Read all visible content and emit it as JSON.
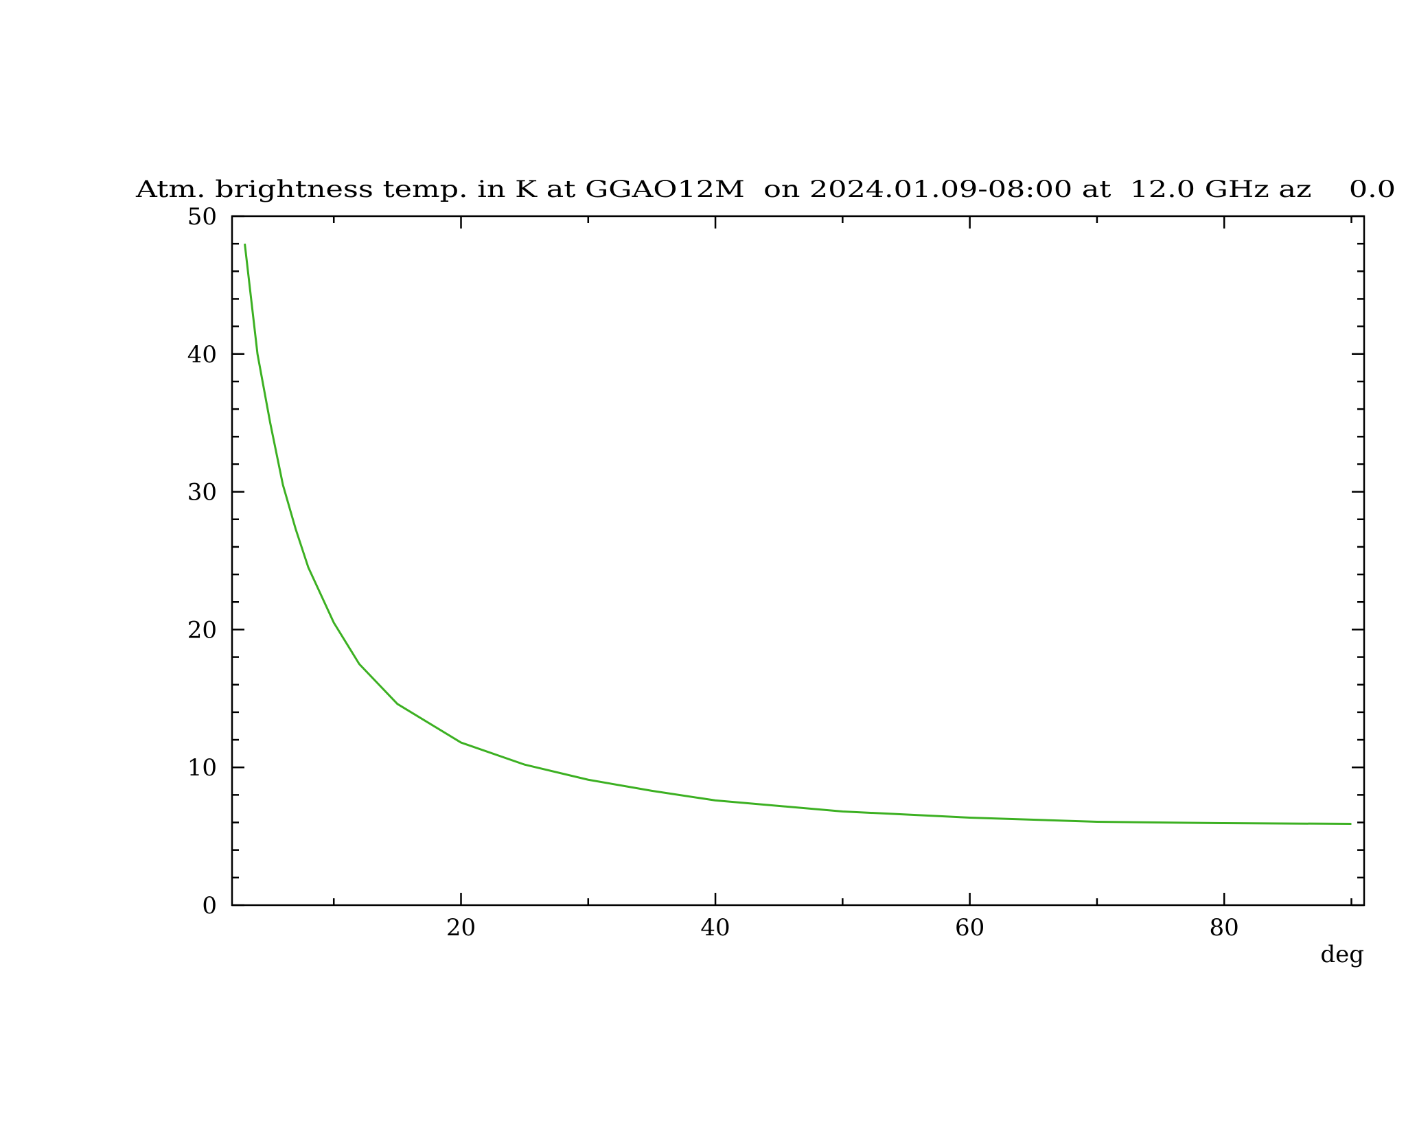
{
  "chart_data": {
    "type": "line",
    "title": "Atm. brightness temp. in K at GGAO12M  on 2024.01.09-08:00 at  12.0 GHz az    0.0",
    "x_label": "deg",
    "series": [
      {
        "color": "#3cb022",
        "x": [
          3,
          4,
          5,
          6,
          7,
          8,
          10,
          12,
          15,
          20,
          25,
          30,
          35,
          40,
          50,
          60,
          70,
          80,
          90
        ],
        "values": [
          48,
          40,
          35,
          30.5,
          27.3,
          24.5,
          20.5,
          17.5,
          14.6,
          11.8,
          10.2,
          9.1,
          8.3,
          7.6,
          6.8,
          6.35,
          6.05,
          5.95,
          5.9
        ]
      }
    ],
    "xlim": [
      2,
      91
    ],
    "xticks": [
      20,
      40,
      60,
      80
    ],
    "minor_xticks": [
      10,
      30,
      50,
      70,
      90
    ],
    "ylim": [
      0,
      50
    ],
    "yticks": [
      0,
      10,
      20,
      30,
      40,
      50
    ],
    "minor_yticks": [
      2,
      4,
      6,
      8,
      12,
      14,
      16,
      18,
      22,
      24,
      26,
      28,
      32,
      34,
      36,
      38,
      42,
      44,
      46,
      48
    ]
  }
}
